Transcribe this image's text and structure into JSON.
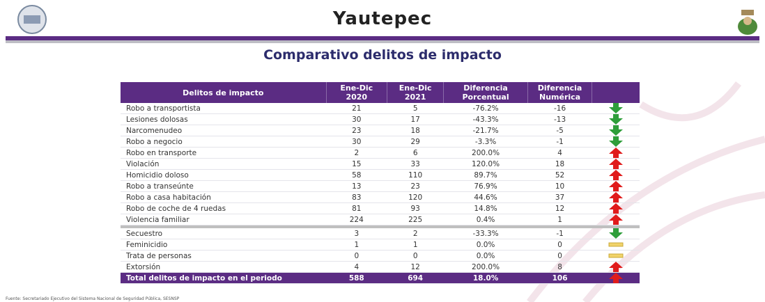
{
  "header": {
    "title": "Yautepec"
  },
  "subtitle": "Comparativo delitos de impacto",
  "table": {
    "columns": [
      "Delitos de impacto",
      "Ene-Dic\n2020",
      "Ene-Dic\n2021",
      "Diferencia\nPorcentual",
      "Diferencia\nNumérica"
    ],
    "rows": [
      [
        "Robo a transportista",
        "21",
        "5",
        "-76.2%",
        "-16"
      ],
      [
        "Lesiones dolosas",
        "30",
        "17",
        "-43.3%",
        "-13"
      ],
      [
        "Narcomenudeo",
        "23",
        "18",
        "-21.7%",
        "-5"
      ],
      [
        "Robo a negocio",
        "30",
        "29",
        "-3.3%",
        "-1"
      ],
      [
        "Robo en transporte",
        "2",
        "6",
        "200.0%",
        "4"
      ],
      [
        "Violación",
        "15",
        "33",
        "120.0%",
        "18"
      ],
      [
        "Homicidio doloso",
        "58",
        "110",
        "89.7%",
        "52"
      ],
      [
        "Robo a transeúnte",
        "13",
        "23",
        "76.9%",
        "10"
      ],
      [
        "Robo a casa habitación",
        "83",
        "120",
        "44.6%",
        "37"
      ],
      [
        "Robo de coche de 4 ruedas",
        "81",
        "93",
        "14.8%",
        "12"
      ],
      [
        "Violencia familiar",
        "224",
        "225",
        "0.4%",
        "1"
      ]
    ],
    "extra_rows": [
      [
        "Secuestro",
        "3",
        "2",
        "-33.3%",
        "-1"
      ],
      [
        "Feminicidio",
        "1",
        "1",
        "0.0%",
        "0"
      ],
      [
        "Trata de personas",
        "0",
        "0",
        "0.0%",
        "0"
      ],
      [
        "Extorsión",
        "4",
        "12",
        "200.0%",
        "8"
      ]
    ],
    "total": [
      "Total delitos de impacto en el periodo",
      "588",
      "694",
      "18.0%",
      "106"
    ]
  },
  "footer": "Fuente: Secretariado Ejecutivo del Sistema Nacional de Seguridad Pública, SESNSP"
}
